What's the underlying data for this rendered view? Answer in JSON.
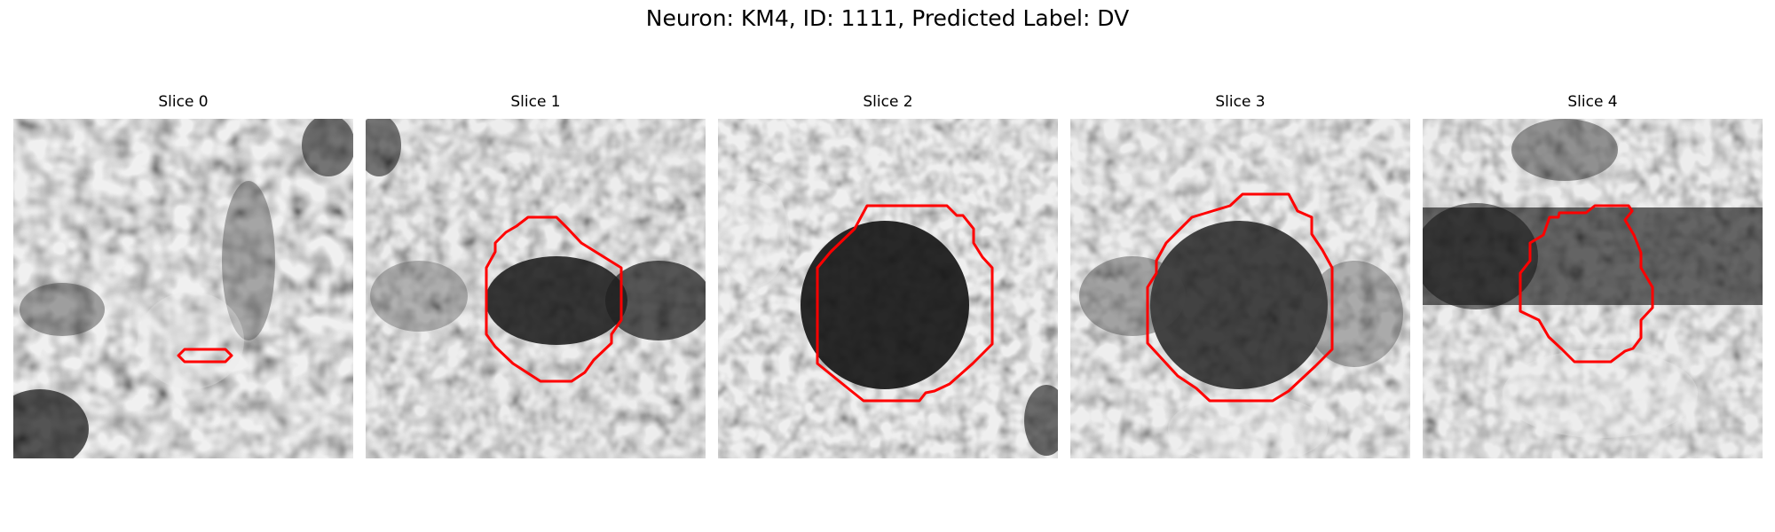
{
  "figure": {
    "title": "Neuron: KM4, ID: 1111, Predicted Label: DV",
    "contour_color": "#ff0000"
  },
  "panels": [
    {
      "title": "Slice 0"
    },
    {
      "title": "Slice 1"
    },
    {
      "title": "Slice 2"
    },
    {
      "title": "Slice 3"
    },
    {
      "title": "Slice 4"
    }
  ]
}
